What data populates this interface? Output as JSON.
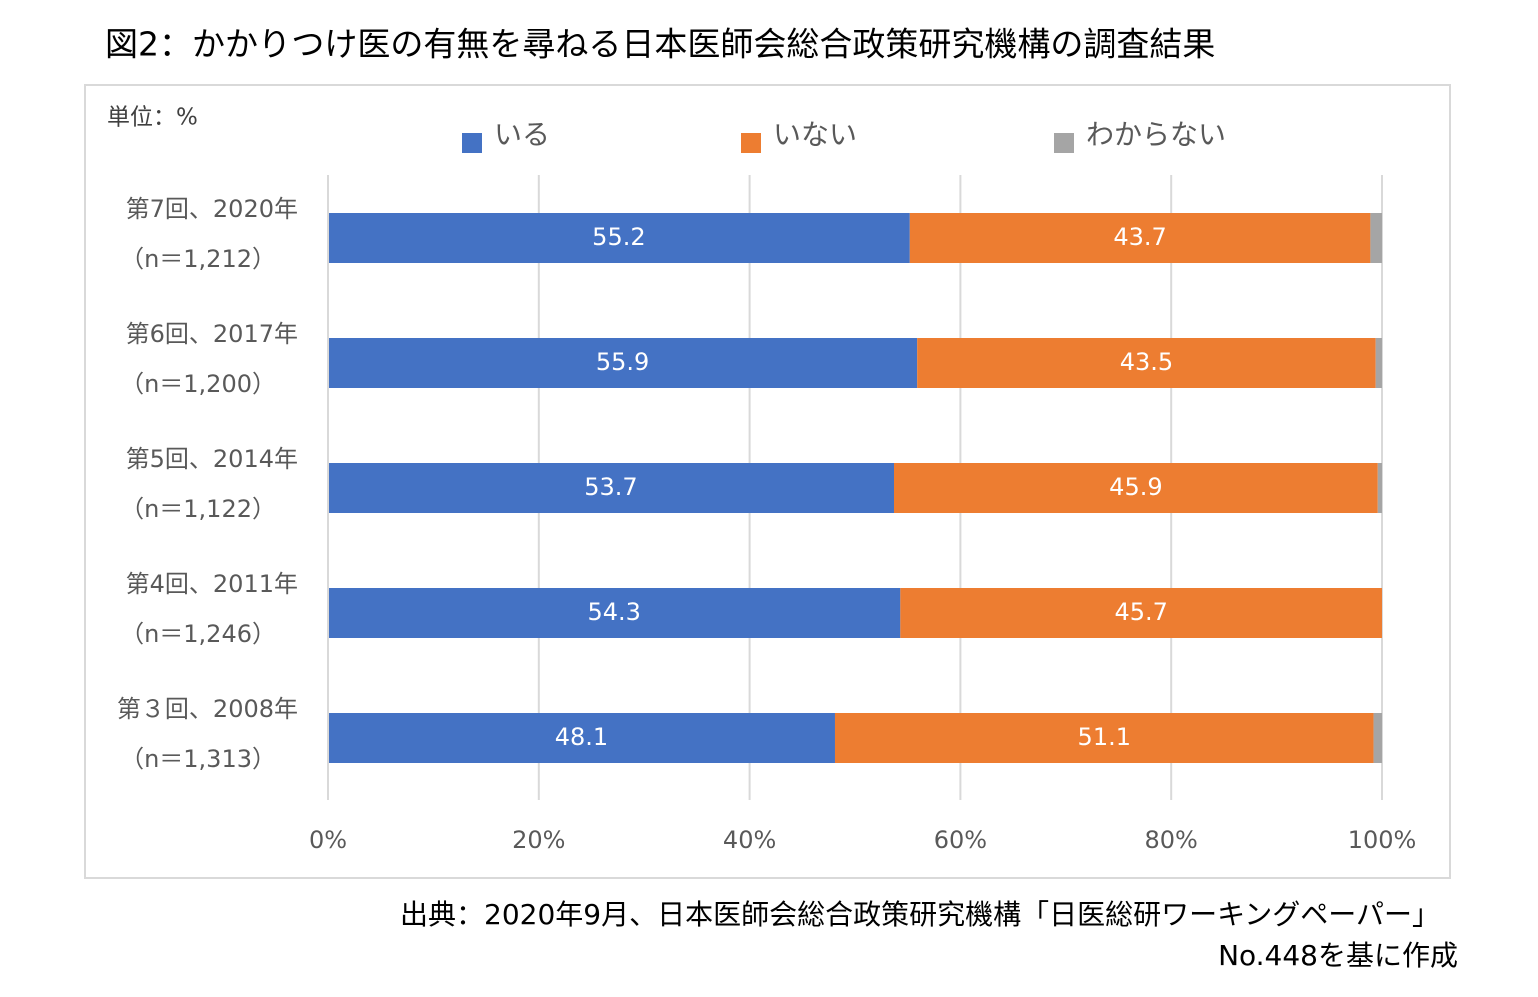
{
  "chart_data": {
    "type": "stacked_bar_horizontal",
    "title": "図2：かかりつけ医の有無を尋ねる日本医師会総合政策研究機構の調査結果",
    "unit_label": "単位：%",
    "categories": [
      "第7回、2020年",
      "第6回、2017年",
      "第5回、2014年",
      "第4回、2011年",
      "第３回、2008年"
    ],
    "category_sublabels": [
      "（n＝1,212）",
      "（n＝1,200）",
      "（n＝1,122）",
      "（n＝1,246）",
      "（n＝1,313）"
    ],
    "series": [
      {
        "name": "いる",
        "color": "#4472c4",
        "values": [
          55.2,
          55.9,
          53.7,
          54.3,
          48.1
        ],
        "show_labels": true
      },
      {
        "name": "いない",
        "color": "#ed7d31",
        "values": [
          43.7,
          43.5,
          45.9,
          45.7,
          51.1
        ],
        "show_labels": true
      },
      {
        "name": "わからない",
        "color": "#a5a5a5",
        "values": [
          1.1,
          0.6,
          0.4,
          0,
          0.8
        ],
        "show_labels": false
      }
    ],
    "xlim": [
      0,
      100
    ],
    "xticks": [
      {
        "value": 0,
        "label": "0%"
      },
      {
        "value": 20,
        "label": "20%"
      },
      {
        "value": 40,
        "label": "40%"
      },
      {
        "value": 60,
        "label": "60%"
      },
      {
        "value": 80,
        "label": "80%"
      },
      {
        "value": 100,
        "label": "100%"
      }
    ],
    "grid": true,
    "legend": "top",
    "source": [
      "出典：2020年9月、日本医師会総合政策研究機構「日医総研ワーキングペーパー」",
      "No.448を基に作成"
    ]
  }
}
